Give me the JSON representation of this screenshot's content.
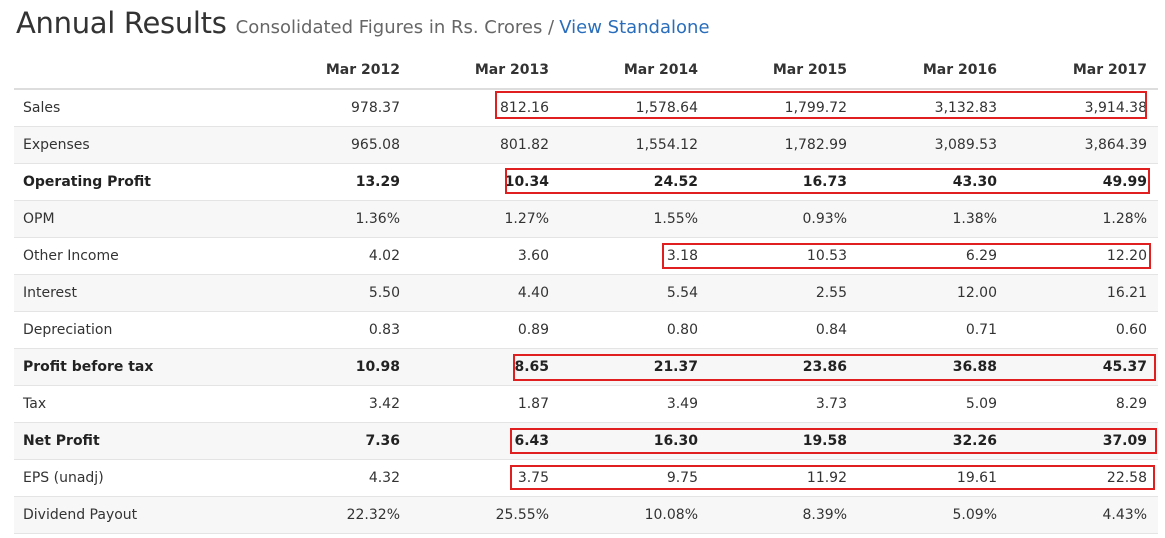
{
  "header": {
    "title": "Annual Results",
    "subtitle": "Consolidated Figures in Rs. Crores /",
    "link": "View Standalone"
  },
  "table": {
    "columns": [
      "Mar 2012",
      "Mar 2013",
      "Mar 2014",
      "Mar 2015",
      "Mar 2016",
      "Mar 2017"
    ],
    "rows": [
      {
        "label": "Sales",
        "values": [
          "978.37",
          "812.16",
          "1,578.64",
          "1,799.72",
          "3,132.83",
          "3,914.38"
        ]
      },
      {
        "label": "Expenses",
        "values": [
          "965.08",
          "801.82",
          "1,554.12",
          "1,782.99",
          "3,089.53",
          "3,864.39"
        ]
      },
      {
        "label": "Operating Profit",
        "values": [
          "13.29",
          "10.34",
          "24.52",
          "16.73",
          "43.30",
          "49.99"
        ]
      },
      {
        "label": "OPM",
        "values": [
          "1.36%",
          "1.27%",
          "1.55%",
          "0.93%",
          "1.38%",
          "1.28%"
        ]
      },
      {
        "label": "Other Income",
        "values": [
          "4.02",
          "3.60",
          "3.18",
          "10.53",
          "6.29",
          "12.20"
        ]
      },
      {
        "label": "Interest",
        "values": [
          "5.50",
          "4.40",
          "5.54",
          "2.55",
          "12.00",
          "16.21"
        ]
      },
      {
        "label": "Depreciation",
        "values": [
          "0.83",
          "0.89",
          "0.80",
          "0.84",
          "0.71",
          "0.60"
        ]
      },
      {
        "label": "Profit before tax",
        "values": [
          "10.98",
          "8.65",
          "21.37",
          "23.86",
          "36.88",
          "45.37"
        ]
      },
      {
        "label": "Tax",
        "values": [
          "3.42",
          "1.87",
          "3.49",
          "3.73",
          "5.09",
          "8.29"
        ]
      },
      {
        "label": "Net Profit",
        "values": [
          "7.36",
          "6.43",
          "16.30",
          "19.58",
          "32.26",
          "37.09"
        ]
      },
      {
        "label": "EPS (unadj)",
        "values": [
          "4.32",
          "3.75",
          "9.75",
          "11.92",
          "19.61",
          "22.58"
        ]
      },
      {
        "label": "Dividend Payout",
        "values": [
          "22.32%",
          "25.55%",
          "10.08%",
          "8.39%",
          "5.09%",
          "4.43%"
        ]
      }
    ]
  },
  "highlight_color": "#e02020"
}
